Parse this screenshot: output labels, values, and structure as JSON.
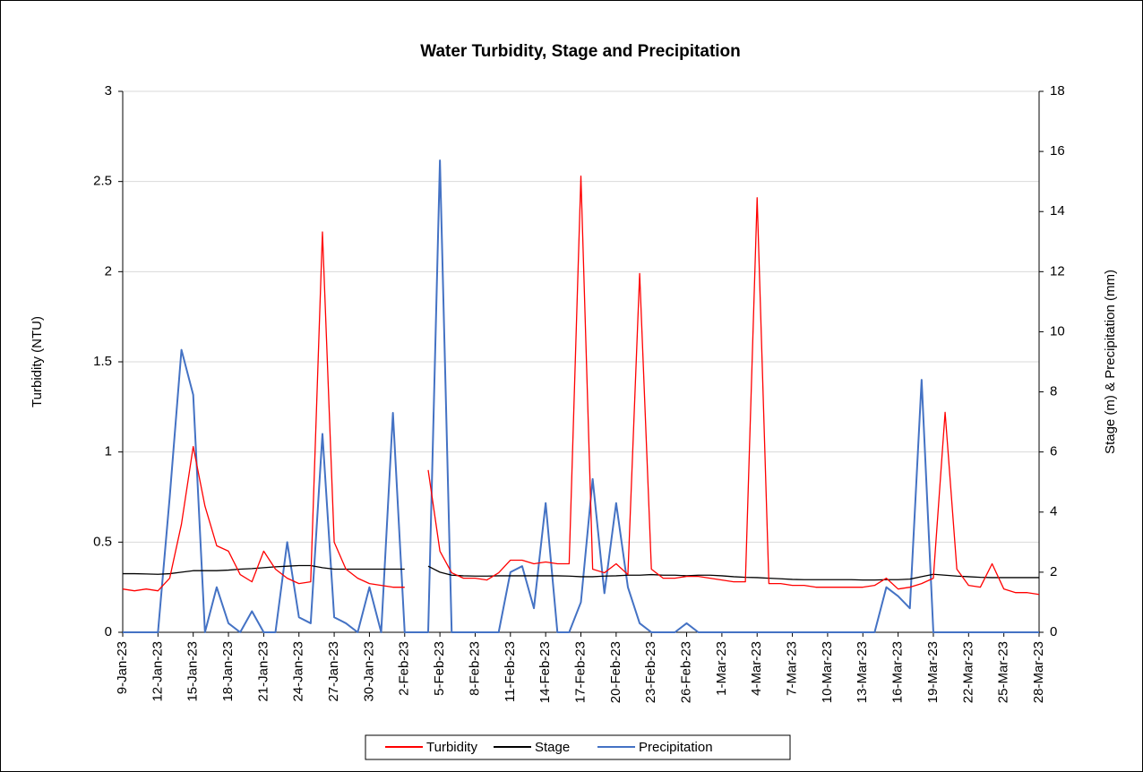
{
  "chart_data": {
    "type": "line",
    "title": "Water Turbidity, Stage and Precipitation",
    "ylabel": "Turbidity (NTU)",
    "y2label": "Stage (m) & Precipitation (mm)",
    "x": [
      "2023-01-09",
      "2023-01-10",
      "2023-01-11",
      "2023-01-12",
      "2023-01-13",
      "2023-01-14",
      "2023-01-15",
      "2023-01-16",
      "2023-01-17",
      "2023-01-18",
      "2023-01-19",
      "2023-01-20",
      "2023-01-21",
      "2023-01-22",
      "2023-01-23",
      "2023-01-24",
      "2023-01-25",
      "2023-01-26",
      "2023-01-27",
      "2023-01-28",
      "2023-01-29",
      "2023-01-30",
      "2023-01-31",
      "2023-02-01",
      "2023-02-02",
      "2023-02-03",
      "2023-02-04",
      "2023-02-05",
      "2023-02-06",
      "2023-02-07",
      "2023-02-08",
      "2023-02-09",
      "2023-02-10",
      "2023-02-11",
      "2023-02-12",
      "2023-02-13",
      "2023-02-14",
      "2023-02-15",
      "2023-02-16",
      "2023-02-17",
      "2023-02-18",
      "2023-02-19",
      "2023-02-20",
      "2023-02-21",
      "2023-02-22",
      "2023-02-23",
      "2023-02-24",
      "2023-02-25",
      "2023-02-26",
      "2023-02-27",
      "2023-02-28",
      "2023-03-01",
      "2023-03-02",
      "2023-03-03",
      "2023-03-04",
      "2023-03-05",
      "2023-03-06",
      "2023-03-07",
      "2023-03-08",
      "2023-03-09",
      "2023-03-10",
      "2023-03-11",
      "2023-03-12",
      "2023-03-13",
      "2023-03-14",
      "2023-03-15",
      "2023-03-16",
      "2023-03-17",
      "2023-03-18",
      "2023-03-19",
      "2023-03-20",
      "2023-03-21",
      "2023-03-22",
      "2023-03-23",
      "2023-03-24",
      "2023-03-25",
      "2023-03-26",
      "2023-03-27",
      "2023-03-28"
    ],
    "series": [
      {
        "name": "Precipitation",
        "color": "#4472c4",
        "axis": "y2",
        "values": [
          0,
          0,
          0,
          0,
          4.5,
          9.4,
          7.9,
          0,
          1.5,
          0.3,
          0,
          0.7,
          0,
          0,
          3.0,
          0.5,
          0.3,
          6.6,
          0.5,
          0.3,
          0,
          1.5,
          0,
          7.3,
          0,
          0,
          0,
          15.7,
          0,
          0,
          0,
          0,
          0,
          2.0,
          2.2,
          0.8,
          4.3,
          0,
          0,
          1.0,
          5.1,
          1.3,
          4.3,
          1.5,
          0.3,
          0,
          0,
          0,
          0.3,
          0,
          0,
          0,
          0,
          0,
          0,
          0,
          0,
          0,
          0,
          0,
          0,
          0,
          0,
          0,
          0,
          1.5,
          1.2,
          0.8,
          8.4,
          0,
          0,
          0,
          0,
          0,
          0,
          0,
          0,
          0,
          0
        ]
      },
      {
        "name": "Stage",
        "color": "#000000",
        "axis": "y2",
        "values": [
          1.95,
          1.95,
          1.94,
          1.93,
          1.95,
          2.0,
          2.05,
          2.05,
          2.05,
          2.07,
          2.1,
          2.12,
          2.15,
          2.18,
          2.2,
          2.22,
          2.22,
          2.15,
          2.1,
          2.1,
          2.1,
          2.1,
          2.1,
          2.1,
          2.1,
          null,
          2.2,
          2.0,
          1.9,
          1.88,
          1.87,
          1.87,
          1.88,
          1.88,
          1.88,
          1.88,
          1.88,
          1.88,
          1.87,
          1.85,
          1.85,
          1.87,
          1.88,
          1.9,
          1.9,
          1.92,
          1.9,
          1.9,
          1.88,
          1.9,
          1.9,
          1.88,
          1.85,
          1.83,
          1.82,
          1.8,
          1.78,
          1.76,
          1.75,
          1.75,
          1.75,
          1.75,
          1.75,
          1.74,
          1.74,
          1.75,
          1.75,
          1.77,
          1.85,
          1.93,
          1.9,
          1.87,
          1.85,
          1.83,
          1.82,
          1.82,
          1.82,
          1.82,
          1.82
        ]
      },
      {
        "name": "Turbidity",
        "color": "#ff0000",
        "values": [
          0.24,
          0.23,
          0.24,
          0.23,
          0.3,
          0.6,
          1.03,
          0.7,
          0.48,
          0.45,
          0.32,
          0.28,
          0.45,
          0.35,
          0.3,
          0.27,
          0.28,
          2.22,
          0.5,
          0.35,
          0.3,
          0.27,
          0.26,
          0.25,
          0.25,
          null,
          0.9,
          0.45,
          0.33,
          0.3,
          0.3,
          0.29,
          0.33,
          0.4,
          0.4,
          0.38,
          0.39,
          0.38,
          0.38,
          2.53,
          0.35,
          0.33,
          0.38,
          0.32,
          1.99,
          0.35,
          0.3,
          0.3,
          0.31,
          0.31,
          0.3,
          0.29,
          0.28,
          0.28,
          2.41,
          0.27,
          0.27,
          0.26,
          0.26,
          0.25,
          0.25,
          0.25,
          0.25,
          0.25,
          0.26,
          0.3,
          0.24,
          0.25,
          0.27,
          0.3,
          1.22,
          0.35,
          0.26,
          0.25,
          0.38,
          0.24,
          0.22,
          0.22,
          0.21
        ]
      }
    ],
    "legend_order": [
      "Turbidity",
      "Stage",
      "Precipitation"
    ],
    "xlim": [
      "2023-01-09",
      "2023-03-28"
    ],
    "xticks": [
      {
        "value": "2023-01-09",
        "label": "9-Jan-23"
      },
      {
        "value": "2023-01-12",
        "label": "12-Jan-23"
      },
      {
        "value": "2023-01-15",
        "label": "15-Jan-23"
      },
      {
        "value": "2023-01-18",
        "label": "18-Jan-23"
      },
      {
        "value": "2023-01-21",
        "label": "21-Jan-23"
      },
      {
        "value": "2023-01-24",
        "label": "24-Jan-23"
      },
      {
        "value": "2023-01-27",
        "label": "27-Jan-23"
      },
      {
        "value": "2023-01-30",
        "label": "30-Jan-23"
      },
      {
        "value": "2023-02-02",
        "label": "2-Feb-23"
      },
      {
        "value": "2023-02-05",
        "label": "5-Feb-23"
      },
      {
        "value": "2023-02-08",
        "label": "8-Feb-23"
      },
      {
        "value": "2023-02-11",
        "label": "11-Feb-23"
      },
      {
        "value": "2023-02-14",
        "label": "14-Feb-23"
      },
      {
        "value": "2023-02-17",
        "label": "17-Feb-23"
      },
      {
        "value": "2023-02-20",
        "label": "20-Feb-23"
      },
      {
        "value": "2023-02-23",
        "label": "23-Feb-23"
      },
      {
        "value": "2023-02-26",
        "label": "26-Feb-23"
      },
      {
        "value": "2023-03-01",
        "label": "1-Mar-23"
      },
      {
        "value": "2023-03-04",
        "label": "4-Mar-23"
      },
      {
        "value": "2023-03-07",
        "label": "7-Mar-23"
      },
      {
        "value": "2023-03-10",
        "label": "10-Mar-23"
      },
      {
        "value": "2023-03-13",
        "label": "13-Mar-23"
      },
      {
        "value": "2023-03-16",
        "label": "16-Mar-23"
      },
      {
        "value": "2023-03-19",
        "label": "19-Mar-23"
      },
      {
        "value": "2023-03-22",
        "label": "22-Mar-23"
      },
      {
        "value": "2023-03-25",
        "label": "25-Mar-23"
      },
      {
        "value": "2023-03-28",
        "label": "28-Mar-23"
      }
    ],
    "ylim": [
      0,
      3
    ],
    "yticks": [
      0,
      0.5,
      1,
      1.5,
      2,
      2.5,
      3
    ],
    "y2lim": [
      0,
      18
    ],
    "y2ticks": [
      0,
      2,
      4,
      6,
      8,
      10,
      12,
      14,
      16,
      18
    ],
    "grid": true,
    "legend": "bottom"
  }
}
